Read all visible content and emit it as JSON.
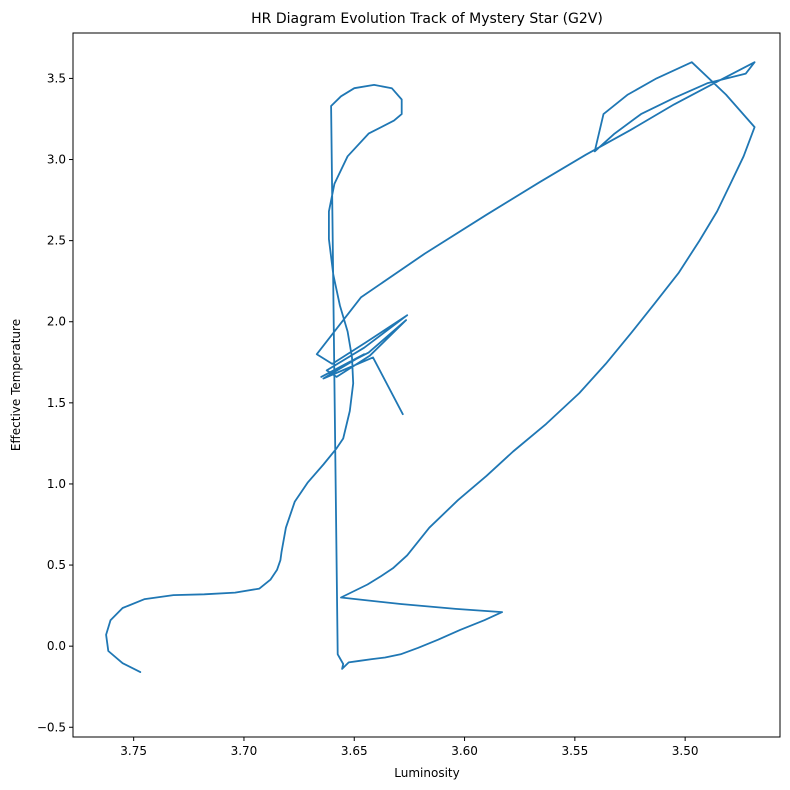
{
  "chart_data": {
    "type": "line",
    "title": "HR Diagram Evolution Track of Mystery Star (G2V)",
    "xlabel": "Luminosity",
    "ylabel": "Effective Temperature",
    "xlim": [
      3.7775,
      3.457
    ],
    "ylim": [
      -0.56,
      3.78
    ],
    "x_inverted": true,
    "grid": false,
    "xticks": [
      "3.75",
      "3.70",
      "3.65",
      "3.60",
      "3.55",
      "3.50"
    ],
    "xtick_values": [
      3.75,
      3.7,
      3.65,
      3.6,
      3.55,
      3.5
    ],
    "yticks": [
      "−0.5",
      "0.0",
      "0.5",
      "1.0",
      "1.5",
      "2.0",
      "2.5",
      "3.0",
      "3.5"
    ],
    "ytick_values": [
      -0.5,
      0.0,
      0.5,
      1.0,
      1.5,
      2.0,
      2.5,
      3.0,
      3.5
    ],
    "series": [
      {
        "color": "#1f77b4",
        "x": [
          3.747,
          3.755,
          3.7615,
          3.7625,
          3.7605,
          3.755,
          3.745,
          3.732,
          3.718,
          3.704,
          3.693,
          3.688,
          3.685,
          3.6835,
          3.683,
          3.681,
          3.677,
          3.671,
          3.664,
          3.658,
          3.655,
          3.652,
          3.6505,
          3.651,
          3.653,
          3.6565,
          3.6595,
          3.6615,
          3.6615,
          3.659,
          3.653,
          3.6435,
          3.632,
          3.6285,
          3.6285,
          3.633,
          3.641,
          3.65,
          3.656,
          3.6605,
          3.6575,
          3.655,
          3.6555,
          3.6525,
          3.6475,
          3.642,
          3.636,
          3.629,
          3.621,
          3.612,
          3.602,
          3.591,
          3.583,
          3.604,
          3.629,
          3.656,
          3.644,
          3.638,
          3.6325,
          3.626,
          3.616,
          3.603,
          3.59,
          3.578,
          3.563,
          3.548,
          3.536,
          3.5245,
          3.514,
          3.503,
          3.4935,
          3.4855,
          3.4795,
          3.4735,
          3.4685,
          3.4815,
          3.497,
          3.513,
          3.526,
          3.537,
          3.541,
          3.532,
          3.52,
          3.505,
          3.49,
          3.4725,
          3.4685,
          3.4855,
          3.505,
          3.525,
          3.545,
          3.566,
          3.59,
          3.618,
          3.647,
          3.667,
          3.66,
          3.645,
          3.626,
          3.6455,
          3.6625,
          3.658,
          3.643,
          3.6265,
          3.6435,
          3.665,
          3.6455,
          3.664,
          3.6415,
          3.628
        ],
        "y": [
          -0.16,
          -0.105,
          -0.03,
          0.07,
          0.16,
          0.235,
          0.29,
          0.315,
          0.32,
          0.33,
          0.355,
          0.41,
          0.47,
          0.53,
          0.58,
          0.73,
          0.89,
          1.01,
          1.12,
          1.22,
          1.28,
          1.45,
          1.62,
          1.78,
          1.94,
          2.1,
          2.29,
          2.51,
          2.68,
          2.85,
          3.02,
          3.16,
          3.24,
          3.28,
          3.37,
          3.44,
          3.46,
          3.44,
          3.39,
          3.33,
          -0.05,
          -0.11,
          -0.14,
          -0.1,
          -0.09,
          -0.08,
          -0.07,
          -0.05,
          -0.01,
          0.04,
          0.1,
          0.16,
          0.21,
          0.23,
          0.26,
          0.3,
          0.38,
          0.43,
          0.48,
          0.56,
          0.73,
          0.9,
          1.05,
          1.2,
          1.37,
          1.56,
          1.74,
          1.93,
          2.11,
          2.3,
          2.5,
          2.68,
          2.85,
          3.02,
          3.2,
          3.4,
          3.6,
          3.5,
          3.4,
          3.28,
          3.05,
          3.16,
          3.28,
          3.38,
          3.47,
          3.53,
          3.6,
          3.48,
          3.34,
          3.18,
          3.03,
          2.86,
          2.66,
          2.42,
          2.15,
          1.8,
          1.74,
          1.87,
          2.04,
          1.84,
          1.7,
          1.66,
          1.79,
          2.01,
          1.81,
          1.66,
          1.8,
          1.65,
          1.78,
          1.43
        ]
      }
    ]
  }
}
